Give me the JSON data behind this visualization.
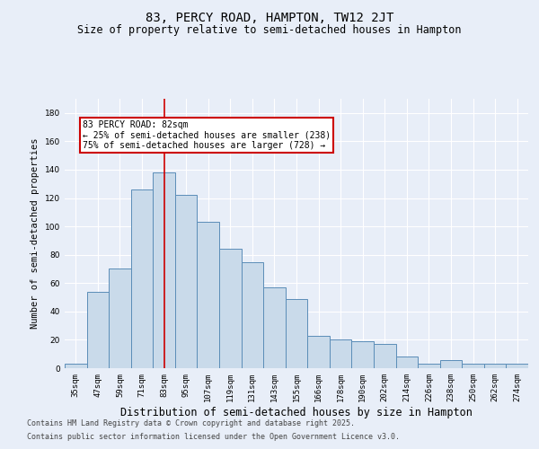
{
  "title1": "83, PERCY ROAD, HAMPTON, TW12 2JT",
  "title2": "Size of property relative to semi-detached houses in Hampton",
  "xlabel": "Distribution of semi-detached houses by size in Hampton",
  "ylabel": "Number of semi-detached properties",
  "categories": [
    "35sqm",
    "47sqm",
    "59sqm",
    "71sqm",
    "83sqm",
    "95sqm",
    "107sqm",
    "119sqm",
    "131sqm",
    "143sqm",
    "155sqm",
    "166sqm",
    "178sqm",
    "190sqm",
    "202sqm",
    "214sqm",
    "226sqm",
    "238sqm",
    "250sqm",
    "262sqm",
    "274sqm"
  ],
  "values": [
    3,
    54,
    70,
    126,
    138,
    122,
    103,
    84,
    75,
    57,
    49,
    23,
    20,
    19,
    17,
    8,
    3,
    6,
    3,
    3,
    3
  ],
  "bar_color": "#c9daea",
  "bar_edge_color": "#5b8db8",
  "vline_index": 4,
  "vline_color": "#cc0000",
  "annotation_text": "83 PERCY ROAD: 82sqm\n← 25% of semi-detached houses are smaller (238)\n75% of semi-detached houses are larger (728) →",
  "annotation_box_color": "#cc0000",
  "ylim": [
    0,
    190
  ],
  "yticks": [
    0,
    20,
    40,
    60,
    80,
    100,
    120,
    140,
    160,
    180
  ],
  "footer1": "Contains HM Land Registry data © Crown copyright and database right 2025.",
  "footer2": "Contains public sector information licensed under the Open Government Licence v3.0.",
  "bg_color": "#e8eef8",
  "plot_bg_color": "#e8eef8",
  "grid_color": "#ffffff",
  "title1_fontsize": 10,
  "title2_fontsize": 8.5,
  "tick_fontsize": 6.5,
  "ylabel_fontsize": 7.5,
  "xlabel_fontsize": 8.5,
  "annot_fontsize": 7,
  "footer_fontsize": 6
}
